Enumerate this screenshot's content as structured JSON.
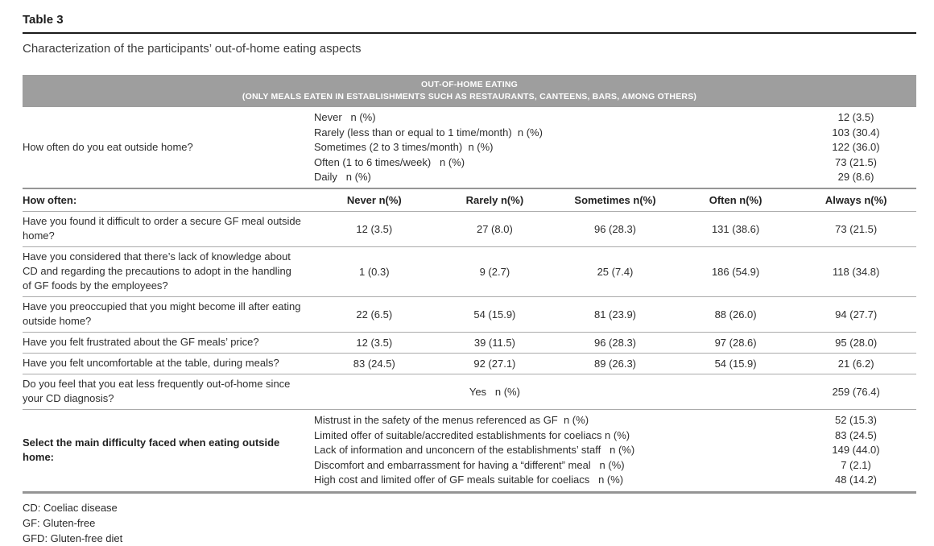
{
  "page": {
    "table_label": "Table 3",
    "caption": "Characterization of the participants’ out-of-home eating aspects"
  },
  "header_band": {
    "line1": "OUT-OF-HOME EATING",
    "line2": "(ONLY MEALS EATEN IN ESTABLISHMENTS SUCH AS RESTAURANTS, CANTEENS, BARS, AMONG OTHERS)"
  },
  "frequency_section": {
    "question": "How often do you eat outside home?",
    "options": [
      {
        "label": "Never   n (%)",
        "value": "12 (3.5)"
      },
      {
        "label": "Rarely (less than or equal to 1 time/month)  n (%)",
        "value": "103 (30.4)"
      },
      {
        "label": "Sometimes (2 to 3 times/month)  n (%)",
        "value": "122 (36.0)"
      },
      {
        "label": "Often (1 to 6 times/week)   n (%)",
        "value": "73 (21.5)"
      },
      {
        "label": "Daily   n (%)",
        "value": "29 (8.6)"
      }
    ]
  },
  "matrix": {
    "row_header": "How often:",
    "columns": [
      "Never n(%)",
      "Rarely n(%)",
      "Sometimes n(%)",
      "Often n(%)",
      "Always n(%)"
    ],
    "rows": [
      {
        "question": "Have you found it difficult to order a secure GF meal outside home?",
        "values": [
          "12 (3.5)",
          "27 (8.0)",
          "96 (28.3)",
          "131 (38.6)",
          "73 (21.5)"
        ]
      },
      {
        "question": "Have you considered that there’s lack of knowledge about CD and regarding the precautions to adopt in the handling of GF foods by the employees?",
        "values": [
          "1 (0.3)",
          "9 (2.7)",
          "25 (7.4)",
          "186 (54.9)",
          "118 (34.8)"
        ]
      },
      {
        "question": "Have you preoccupied that you might become ill after eating outside home?",
        "values": [
          "22 (6.5)",
          "54 (15.9)",
          "81 (23.9)",
          "88 (26.0)",
          "94 (27.7)"
        ]
      },
      {
        "question": "Have you felt frustrated about the GF meals’ price?",
        "values": [
          "12 (3.5)",
          "39 (11.5)",
          "96 (28.3)",
          "97 (28.6)",
          "95 (28.0)"
        ]
      },
      {
        "question": "Have you felt uncomfortable at the table, during meals?",
        "values": [
          "83 (24.5)",
          "92 (27.1)",
          "89 (26.3)",
          "54 (15.9)",
          "21 (6.2)"
        ]
      }
    ]
  },
  "yes_row": {
    "question": "Do you feel that you eat less frequently out-of-home since your CD diagnosis?",
    "answer_label": "Yes   n (%)",
    "value": "259 (76.4)"
  },
  "difficulty_section": {
    "question": "Select the main difficulty faced when eating outside home:",
    "options": [
      {
        "label": "Mistrust in the safety of the menus referenced as GF  n (%)",
        "value": "52 (15.3)"
      },
      {
        "label": "Limited offer of suitable/accredited establishments for coeliacs n (%)",
        "value": "83 (24.5)"
      },
      {
        "label": "Lack of information and unconcern of the establishments’ staff   n (%)",
        "value": "149 (44.0)"
      },
      {
        "label": "Discomfort and embarrassment for having a “different” meal   n (%)",
        "value": "7 (2.1)"
      },
      {
        "label": "High cost and limited offer of GF meals suitable for coeliacs   n (%)",
        "value": "48 (14.2)"
      }
    ]
  },
  "footnotes": [
    "CD: Coeliac disease",
    "GF: Gluten-free",
    "GFD: Gluten-free diet"
  ]
}
